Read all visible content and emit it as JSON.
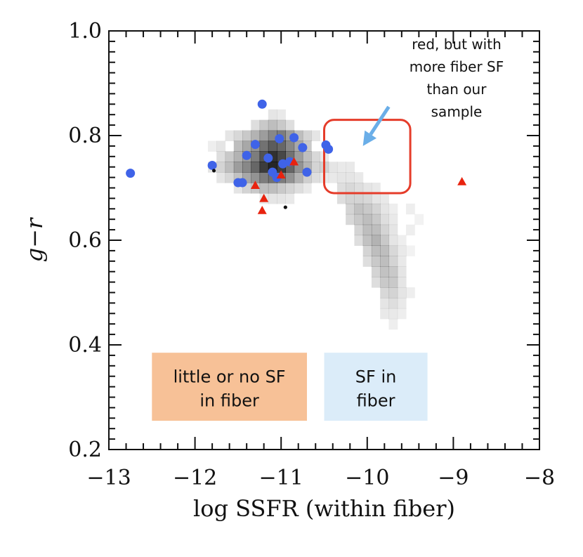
{
  "chart_data": {
    "type": "scatter",
    "xlabel": "log SSFR (within fiber)",
    "ylabel": "g−r",
    "xlim": [
      -13,
      -8
    ],
    "ylim": [
      0.2,
      1.0
    ],
    "xticks": [
      -13,
      -12,
      -11,
      -10,
      -9,
      -8
    ],
    "xtick_labels": [
      "−13",
      "−12",
      "−11",
      "−10",
      "−9",
      "−8"
    ],
    "yticks": [
      0.2,
      0.4,
      0.6,
      0.8,
      1.0
    ],
    "ytick_labels": [
      "0.2",
      "0.4",
      "0.6",
      "0.8",
      "1.0"
    ],
    "grid": false,
    "background_density": {
      "description_none": "",
      "color": "#000000",
      "cell_dx": 0.1,
      "cell_dy": 0.02,
      "cells": [
        [
          -11.8,
          0.78,
          0.08
        ],
        [
          -11.7,
          0.78,
          0.12
        ],
        [
          -11.6,
          0.8,
          0.12
        ],
        [
          -11.5,
          0.8,
          0.18
        ],
        [
          -11.4,
          0.8,
          0.25
        ],
        [
          -11.3,
          0.8,
          0.35
        ],
        [
          -11.2,
          0.8,
          0.45
        ],
        [
          -11.1,
          0.8,
          0.55
        ],
        [
          -11.0,
          0.8,
          0.6
        ],
        [
          -10.9,
          0.8,
          0.45
        ],
        [
          -10.8,
          0.8,
          0.3
        ],
        [
          -10.7,
          0.8,
          0.2
        ],
        [
          -10.6,
          0.8,
          0.12
        ],
        [
          -11.7,
          0.76,
          0.15
        ],
        [
          -11.6,
          0.76,
          0.25
        ],
        [
          -11.5,
          0.76,
          0.35
        ],
        [
          -11.4,
          0.76,
          0.45
        ],
        [
          -11.3,
          0.76,
          0.6
        ],
        [
          -11.2,
          0.76,
          0.8
        ],
        [
          -11.1,
          0.76,
          0.95
        ],
        [
          -11.0,
          0.76,
          0.85
        ],
        [
          -10.9,
          0.76,
          0.65
        ],
        [
          -10.8,
          0.76,
          0.45
        ],
        [
          -10.7,
          0.76,
          0.3
        ],
        [
          -10.6,
          0.76,
          0.18
        ],
        [
          -10.5,
          0.76,
          0.1
        ],
        [
          -11.8,
          0.74,
          0.12
        ],
        [
          -11.7,
          0.74,
          0.2
        ],
        [
          -11.6,
          0.74,
          0.3
        ],
        [
          -11.5,
          0.74,
          0.45
        ],
        [
          -11.4,
          0.74,
          0.55
        ],
        [
          -11.3,
          0.74,
          0.7
        ],
        [
          -11.2,
          0.74,
          0.9
        ],
        [
          -11.1,
          0.74,
          1.0
        ],
        [
          -11.0,
          0.74,
          0.9
        ],
        [
          -10.9,
          0.74,
          0.7
        ],
        [
          -10.8,
          0.74,
          0.5
        ],
        [
          -10.7,
          0.74,
          0.35
        ],
        [
          -10.6,
          0.74,
          0.2
        ],
        [
          -10.5,
          0.74,
          0.12
        ],
        [
          -11.7,
          0.72,
          0.12
        ],
        [
          -11.6,
          0.72,
          0.18
        ],
        [
          -11.5,
          0.72,
          0.28
        ],
        [
          -11.4,
          0.72,
          0.4
        ],
        [
          -11.3,
          0.72,
          0.5
        ],
        [
          -11.2,
          0.72,
          0.6
        ],
        [
          -11.1,
          0.72,
          0.65
        ],
        [
          -11.0,
          0.72,
          0.6
        ],
        [
          -10.9,
          0.72,
          0.5
        ],
        [
          -10.8,
          0.72,
          0.35
        ],
        [
          -10.7,
          0.72,
          0.22
        ],
        [
          -10.6,
          0.72,
          0.15
        ],
        [
          -10.5,
          0.72,
          0.1
        ],
        [
          -10.4,
          0.72,
          0.1
        ],
        [
          -11.5,
          0.78,
          0.3
        ],
        [
          -11.4,
          0.78,
          0.4
        ],
        [
          -11.3,
          0.78,
          0.5
        ],
        [
          -11.2,
          0.78,
          0.65
        ],
        [
          -11.1,
          0.78,
          0.75
        ],
        [
          -11.0,
          0.78,
          0.7
        ],
        [
          -10.9,
          0.78,
          0.55
        ],
        [
          -10.8,
          0.78,
          0.4
        ],
        [
          -10.7,
          0.78,
          0.25
        ],
        [
          -11.3,
          0.82,
          0.15
        ],
        [
          -11.2,
          0.82,
          0.25
        ],
        [
          -11.1,
          0.82,
          0.3
        ],
        [
          -11.0,
          0.82,
          0.25
        ],
        [
          -10.9,
          0.82,
          0.15
        ],
        [
          -11.0,
          0.84,
          0.1
        ],
        [
          -11.1,
          0.84,
          0.12
        ],
        [
          -11.5,
          0.7,
          0.12
        ],
        [
          -11.4,
          0.7,
          0.2
        ],
        [
          -11.3,
          0.7,
          0.25
        ],
        [
          -11.2,
          0.7,
          0.3
        ],
        [
          -11.1,
          0.7,
          0.3
        ],
        [
          -11.0,
          0.7,
          0.25
        ],
        [
          -10.9,
          0.7,
          0.2
        ],
        [
          -10.8,
          0.7,
          0.15
        ],
        [
          -10.7,
          0.7,
          0.1
        ],
        [
          -11.2,
          0.68,
          0.1
        ],
        [
          -11.1,
          0.68,
          0.12
        ],
        [
          -11.0,
          0.68,
          0.12
        ],
        [
          -10.9,
          0.68,
          0.1
        ],
        [
          -10.5,
          0.74,
          0.1
        ],
        [
          -10.4,
          0.74,
          0.12
        ],
        [
          -10.3,
          0.74,
          0.1
        ],
        [
          -10.2,
          0.74,
          0.1
        ],
        [
          -10.3,
          0.72,
          0.12
        ],
        [
          -10.2,
          0.72,
          0.12
        ],
        [
          -10.1,
          0.72,
          0.1
        ],
        [
          -10.3,
          0.7,
          0.15
        ],
        [
          -10.2,
          0.7,
          0.18
        ],
        [
          -10.1,
          0.7,
          0.15
        ],
        [
          -10.0,
          0.7,
          0.12
        ],
        [
          -9.9,
          0.7,
          0.1
        ],
        [
          -10.3,
          0.68,
          0.15
        ],
        [
          -10.2,
          0.68,
          0.2
        ],
        [
          -10.1,
          0.68,
          0.2
        ],
        [
          -10.0,
          0.68,
          0.18
        ],
        [
          -9.9,
          0.68,
          0.12
        ],
        [
          -9.8,
          0.68,
          0.1
        ],
        [
          -10.2,
          0.66,
          0.2
        ],
        [
          -10.1,
          0.66,
          0.28
        ],
        [
          -10.0,
          0.66,
          0.25
        ],
        [
          -9.9,
          0.66,
          0.2
        ],
        [
          -9.8,
          0.66,
          0.12
        ],
        [
          -9.7,
          0.66,
          0.08
        ],
        [
          -10.2,
          0.64,
          0.18
        ],
        [
          -10.1,
          0.64,
          0.25
        ],
        [
          -10.0,
          0.64,
          0.3
        ],
        [
          -9.9,
          0.64,
          0.25
        ],
        [
          -9.8,
          0.64,
          0.15
        ],
        [
          -9.7,
          0.64,
          0.1
        ],
        [
          -10.1,
          0.62,
          0.2
        ],
        [
          -10.0,
          0.62,
          0.3
        ],
        [
          -9.9,
          0.62,
          0.3
        ],
        [
          -9.8,
          0.62,
          0.2
        ],
        [
          -9.7,
          0.62,
          0.12
        ],
        [
          -10.1,
          0.6,
          0.15
        ],
        [
          -10.0,
          0.6,
          0.28
        ],
        [
          -9.9,
          0.6,
          0.35
        ],
        [
          -9.8,
          0.6,
          0.25
        ],
        [
          -9.7,
          0.6,
          0.12
        ],
        [
          -9.6,
          0.6,
          0.08
        ],
        [
          -10.0,
          0.58,
          0.2
        ],
        [
          -9.9,
          0.58,
          0.3
        ],
        [
          -9.8,
          0.58,
          0.3
        ],
        [
          -9.7,
          0.58,
          0.18
        ],
        [
          -9.6,
          0.58,
          0.1
        ],
        [
          -10.0,
          0.56,
          0.15
        ],
        [
          -9.9,
          0.56,
          0.25
        ],
        [
          -9.8,
          0.56,
          0.3
        ],
        [
          -9.7,
          0.56,
          0.2
        ],
        [
          -9.6,
          0.56,
          0.1
        ],
        [
          -9.9,
          0.54,
          0.2
        ],
        [
          -9.8,
          0.54,
          0.28
        ],
        [
          -9.7,
          0.54,
          0.25
        ],
        [
          -9.6,
          0.54,
          0.12
        ],
        [
          -9.9,
          0.52,
          0.15
        ],
        [
          -9.8,
          0.52,
          0.25
        ],
        [
          -9.7,
          0.52,
          0.25
        ],
        [
          -9.6,
          0.52,
          0.12
        ],
        [
          -9.8,
          0.5,
          0.18
        ],
        [
          -9.7,
          0.5,
          0.2
        ],
        [
          -9.6,
          0.5,
          0.12
        ],
        [
          -9.5,
          0.5,
          0.08
        ],
        [
          -9.8,
          0.48,
          0.12
        ],
        [
          -9.7,
          0.48,
          0.15
        ],
        [
          -9.6,
          0.48,
          0.1
        ],
        [
          -9.8,
          0.46,
          0.1
        ],
        [
          -9.7,
          0.46,
          0.1
        ],
        [
          -9.6,
          0.46,
          0.08
        ],
        [
          -9.7,
          0.44,
          0.08
        ],
        [
          -9.5,
          0.62,
          0.08
        ],
        [
          -9.5,
          0.66,
          0.08
        ],
        [
          -9.4,
          0.64,
          0.06
        ],
        [
          -9.5,
          0.58,
          0.06
        ]
      ]
    },
    "series": [
      {
        "marker": "circle",
        "color": "#3f63e8",
        "points": [
          [
            -12.75,
            0.728
          ],
          [
            -11.8,
            0.743
          ],
          [
            -11.5,
            0.71
          ],
          [
            -11.45,
            0.71
          ],
          [
            -11.4,
            0.762
          ],
          [
            -11.3,
            0.783
          ],
          [
            -11.22,
            0.86
          ],
          [
            -11.15,
            0.757
          ],
          [
            -11.1,
            0.73
          ],
          [
            -11.05,
            0.72
          ],
          [
            -11.02,
            0.794
          ],
          [
            -10.98,
            0.746
          ],
          [
            -10.9,
            0.75
          ],
          [
            -10.85,
            0.796
          ],
          [
            -10.75,
            0.777
          ],
          [
            -10.7,
            0.73
          ],
          [
            -10.48,
            0.782
          ],
          [
            -10.45,
            0.774
          ]
        ]
      },
      {
        "marker": "triangle",
        "color": "#e8230f",
        "points": [
          [
            -11.3,
            0.705
          ],
          [
            -11.2,
            0.68
          ],
          [
            -11.22,
            0.657
          ],
          [
            -11.0,
            0.725
          ],
          [
            -10.85,
            0.75
          ],
          [
            -8.9,
            0.712
          ]
        ]
      },
      {
        "marker": "dot",
        "color": "#111111",
        "points": [
          [
            -11.78,
            0.733
          ],
          [
            -10.95,
            0.663
          ]
        ]
      }
    ],
    "annotations": {
      "box_region": {
        "x": [
          -10.5,
          -9.5
        ],
        "y": [
          0.69,
          0.83
        ],
        "color": "#e53c2a"
      },
      "arrow": {
        "from": [
          -9.75,
          0.855
        ],
        "to": [
          -10.05,
          0.78
        ],
        "color": "#6aaee8"
      },
      "note_lines": [
        "red, but with",
        "more fiber SF",
        "than our",
        "sample"
      ],
      "label_left": {
        "lines": [
          "little or no SF",
          "in fiber"
        ],
        "color": "#f7c197",
        "x": [
          -12.5,
          -10.7
        ],
        "y": [
          0.255,
          0.385
        ]
      },
      "label_right": {
        "lines": [
          "SF in",
          "fiber"
        ],
        "color": "#dbecf9",
        "x": [
          -10.5,
          -9.3
        ],
        "y": [
          0.255,
          0.385
        ]
      }
    }
  }
}
